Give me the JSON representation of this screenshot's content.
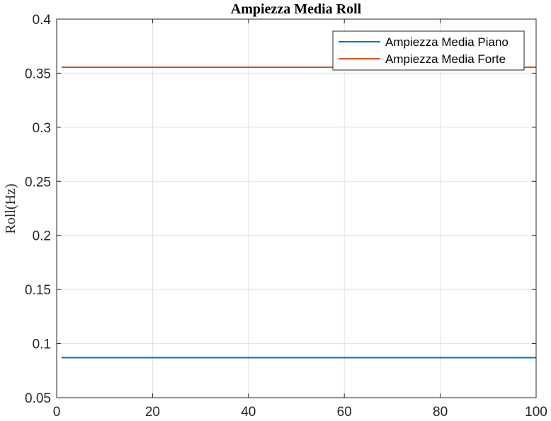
{
  "chart_data": {
    "type": "line",
    "title": "Ampiezza Media Roll",
    "xlabel": "",
    "ylabel": "Roll(Hz)",
    "xlim": [
      0,
      100
    ],
    "ylim": [
      0.05,
      0.4
    ],
    "x_ticks": [
      "0",
      "20",
      "40",
      "60",
      "80",
      "100"
    ],
    "y_ticks": [
      "0.05",
      "0.1",
      "0.15",
      "0.2",
      "0.25",
      "0.3",
      "0.35",
      "0.4"
    ],
    "grid": true,
    "legend_position": "top-right",
    "series": [
      {
        "name": "Ampiezza Media Piano",
        "color": "#0072BD",
        "x": [
          1,
          100
        ],
        "y": [
          0.087,
          0.087
        ]
      },
      {
        "name": "Ampiezza Media Forte",
        "color": "#D95319",
        "x": [
          1,
          100
        ],
        "y": [
          0.3555,
          0.3555
        ]
      }
    ]
  }
}
